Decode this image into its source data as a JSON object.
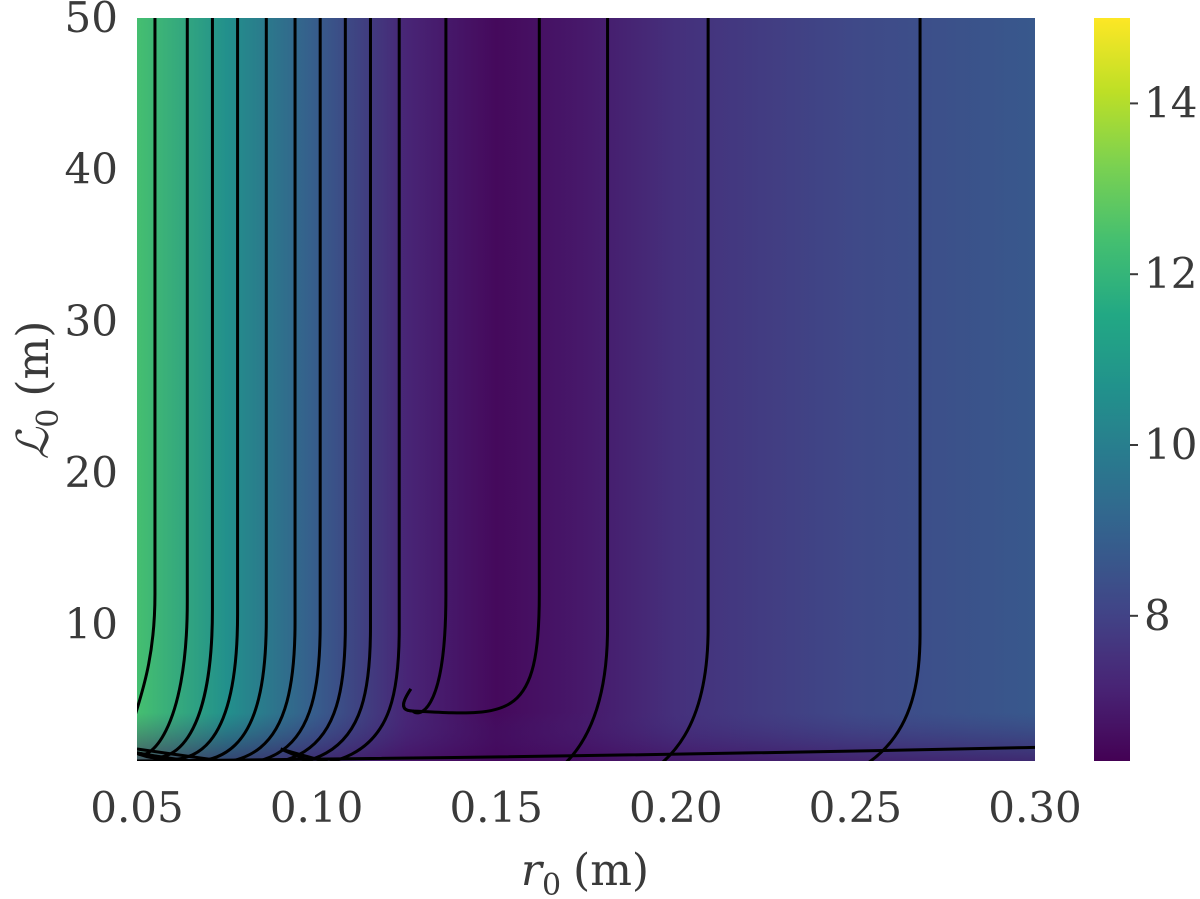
{
  "chart_data": {
    "type": "heatmap",
    "title": "",
    "xlabel": {
      "symbol": "r",
      "subscript": "0",
      "unit": "(m)"
    },
    "ylabel": {
      "symbol": "ℒ",
      "subscript": "0",
      "unit": "(m)"
    },
    "xlim": [
      0.05,
      0.3
    ],
    "ylim": [
      1,
      50
    ],
    "xticks": [
      0.05,
      0.1,
      0.15,
      0.2,
      0.25,
      0.3
    ],
    "xtick_labels": [
      "0.05",
      "0.10",
      "0.15",
      "0.20",
      "0.25",
      "0.30"
    ],
    "yticks": [
      10,
      20,
      30,
      40,
      50
    ],
    "ytick_labels": [
      "10",
      "20",
      "30",
      "40",
      "50"
    ],
    "colormap": "viridis",
    "colorbar": {
      "range": [
        6.3,
        15.0
      ],
      "ticks": [
        8,
        10,
        12,
        14
      ],
      "tick_labels": [
        "8",
        "10",
        "12",
        "14"
      ]
    },
    "field_profile_at_large_L": {
      "r": [
        0.05,
        0.075,
        0.1,
        0.125,
        0.15,
        0.175,
        0.2,
        0.25,
        0.3
      ],
      "value": [
        12.4,
        10.6,
        8.8,
        7.2,
        6.5,
        6.9,
        7.5,
        8.2,
        8.7
      ]
    },
    "contours": [
      {
        "r_asymptote": 0.055,
        "min_L": 5.5
      },
      {
        "r_asymptote": 0.064,
        "min_L": 3.5
      },
      {
        "r_asymptote": 0.071,
        "min_L": 3.0
      },
      {
        "r_asymptote": 0.078,
        "min_L": 2.7
      },
      {
        "r_asymptote": 0.086,
        "min_L": 2.4
      },
      {
        "r_asymptote": 0.094,
        "min_L": 2.2
      },
      {
        "r_asymptote": 0.101,
        "min_L": 2.0
      },
      {
        "r_asymptote": 0.108,
        "min_L": 1.9
      },
      {
        "r_asymptote": 0.115,
        "min_L": 1.8
      },
      {
        "r_asymptote": 0.123,
        "min_L": 1.7
      },
      {
        "r_asymptote": 0.136,
        "min_L": 4.3,
        "closed_at_r": 0.124
      },
      {
        "r_asymptote": 0.162,
        "min_L": 4.3,
        "closed_at_r": 0.124
      },
      {
        "r_asymptote": 0.181,
        "min_L": 1.8,
        "closed_at_r": 0.09
      },
      {
        "r_asymptote": 0.209,
        "min_L": 1.8,
        "closed_at_r": 0.09
      },
      {
        "r_asymptote": 0.268,
        "min_L": 1.4,
        "closed_at_r": 0.05
      },
      {
        "r_start": 0.05,
        "L_start": 1.0,
        "r_end": 0.3,
        "L_end": 1.9
      }
    ]
  }
}
